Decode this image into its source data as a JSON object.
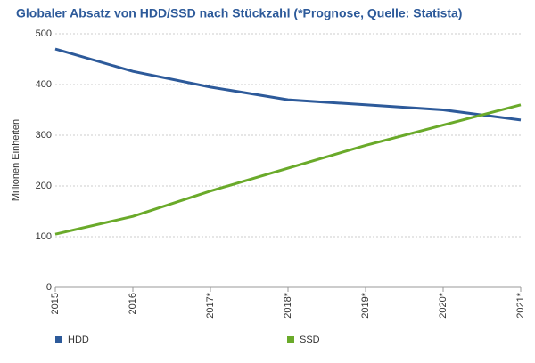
{
  "chart_data": {
    "type": "line",
    "title": "Globaler Absatz von HDD/SSD nach Stückzahl (*Prognose, Quelle: Statista)",
    "y_label": "Millionen Einheiten",
    "categories": [
      "2015",
      "2016",
      "2017*",
      "2018*",
      "2019*",
      "2020*",
      "2021*"
    ],
    "series": [
      {
        "name": "HDD",
        "color": "#2d5a9a",
        "values": [
          470,
          426,
          395,
          370,
          360,
          350,
          330
        ]
      },
      {
        "name": "SSD",
        "color": "#6aaa2a",
        "values": [
          105,
          140,
          190,
          235,
          280,
          320,
          360
        ]
      }
    ],
    "ylim": [
      0,
      500
    ],
    "yticks": [
      0,
      100,
      200,
      300,
      400,
      500
    ],
    "grid": true,
    "legend": "bottom"
  }
}
